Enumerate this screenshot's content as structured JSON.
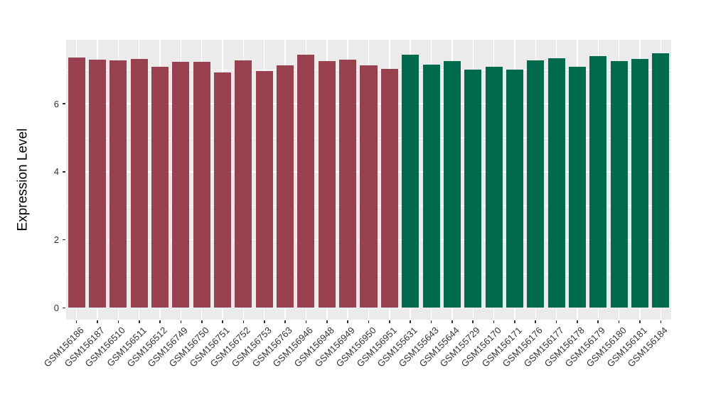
{
  "chart_data": {
    "type": "bar",
    "title": "",
    "xlabel": "",
    "ylabel": "Expression Level",
    "ylim": [
      0,
      7.9
    ],
    "yticks": [
      0,
      2,
      4,
      6
    ],
    "yticks_minor": [
      1,
      3,
      5,
      7
    ],
    "grid": "on",
    "legend_position": "none",
    "panel_background": "#EBEBEB",
    "figure_background": "#FFFFFF",
    "gridline_color": "#FFFFFF",
    "axis_text_color": "#333333",
    "x_label_angle_deg": 45,
    "categories": [
      "GSM156186",
      "GSM156187",
      "GSM156510",
      "GSM156511",
      "GSM156512",
      "GSM156749",
      "GSM156750",
      "GSM156751",
      "GSM156752",
      "GSM156753",
      "GSM156763",
      "GSM156946",
      "GSM156948",
      "GSM156949",
      "GSM156950",
      "GSM156951",
      "GSM155631",
      "GSM155643",
      "GSM155644",
      "GSM155729",
      "GSM156170",
      "GSM156171",
      "GSM156176",
      "GSM156177",
      "GSM156178",
      "GSM156179",
      "GSM156180",
      "GSM156181",
      "GSM156184"
    ],
    "values": [
      7.36,
      7.3,
      7.27,
      7.31,
      7.08,
      7.23,
      7.23,
      6.92,
      7.28,
      6.97,
      7.12,
      7.45,
      7.26,
      7.29,
      7.13,
      7.03,
      7.44,
      7.14,
      7.25,
      7.01,
      7.09,
      7.01,
      7.28,
      7.33,
      7.08,
      7.4,
      7.25,
      7.32,
      7.48
    ],
    "groups": [
      "red",
      "red",
      "red",
      "red",
      "red",
      "red",
      "red",
      "red",
      "red",
      "red",
      "red",
      "red",
      "red",
      "red",
      "red",
      "red",
      "green",
      "green",
      "green",
      "green",
      "green",
      "green",
      "green",
      "green",
      "green",
      "green",
      "green",
      "green",
      "green"
    ],
    "group_colors": {
      "red": "#9A4150",
      "green": "#006B4C"
    }
  }
}
